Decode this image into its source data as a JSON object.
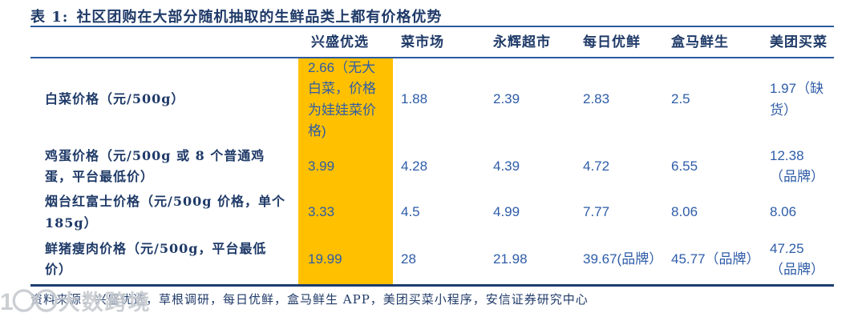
{
  "title": {
    "prefix": "表 1:",
    "text": "社区团购在大部分随机抽取的生鲜品类上都有价格优势"
  },
  "table": {
    "highlight_column": "兴盛优选",
    "highlight_color": "#FFC000",
    "columns": [
      "兴盛优选",
      "菜市场",
      "永辉超市",
      "每日优鲜",
      "盒马鲜生",
      "美团买菜"
    ],
    "rows": [
      {
        "label": "白菜价格（元/500g）",
        "values": [
          "2.66（无大白菜，价格为娃娃菜价格)",
          "1.88",
          "2.39",
          "2.83",
          "2.5",
          "1.97（缺货）"
        ]
      },
      {
        "label": "鸡蛋价格（元/500g 或 8 个普通鸡蛋，平台最低价）",
        "values": [
          "3.99",
          "4.28",
          "4.39",
          "4.72",
          "6.55",
          "12.38（品牌）"
        ]
      },
      {
        "label": "烟台红富士价格（元/500g 价格，单个 185g）",
        "values": [
          "3.33",
          "4.5",
          "4.99",
          "7.77",
          "8.06",
          "8.06"
        ]
      },
      {
        "label": "鲜猪瘦肉价格（元/500g，平台最低价）",
        "values": [
          "19.99",
          "28",
          "21.98",
          "39.67(品牌）",
          "45.77（品牌）",
          "47.25（品牌）"
        ]
      }
    ]
  },
  "source": "资料来源：兴盛优选，草根调研，每日优鲜，盒马鲜生 APP，美团买菜小程序，安信证券研究中心",
  "watermark": {
    "logo": "1〇〇",
    "text": "大数跨境"
  },
  "colors": {
    "highlight": "#FFC000",
    "navy": "#1F3A68",
    "value_blue": "#2E5CA8",
    "rule_blue": "#2B5AA0",
    "rule_dark": "#1C3D6E"
  },
  "chart_data": {
    "type": "table",
    "title": "表 1: 社区团购在大部分随机抽取的生鲜品类上都有价格优势",
    "columns": [
      "兴盛优选",
      "菜市场",
      "永辉超市",
      "每日优鲜",
      "盒马鲜生",
      "美团买菜"
    ],
    "rows": [
      {
        "label": "白菜价格（元/500g）",
        "values": [
          "2.66（无大白菜，价格为娃娃菜价格)",
          "1.88",
          "2.39",
          "2.83",
          "2.5",
          "1.97（缺货）"
        ]
      },
      {
        "label": "鸡蛋价格（元/500g 或 8 个普通鸡蛋，平台最低价）",
        "values": [
          "3.99",
          "4.28",
          "4.39",
          "4.72",
          "6.55",
          "12.38（品牌）"
        ]
      },
      {
        "label": "烟台红富士价格（元/500g 价格，单个 185g）",
        "values": [
          "3.33",
          "4.5",
          "4.99",
          "7.77",
          "8.06",
          "8.06"
        ]
      },
      {
        "label": "鲜猪瘦肉价格（元/500g，平台最低价）",
        "values": [
          "19.99",
          "28",
          "21.98",
          "39.67(品牌）",
          "45.77（品牌）",
          "47.25（品牌）"
        ]
      }
    ],
    "layout_hints": {
      "highlighted_column": "兴盛优选",
      "highlight_color": "#FFC000"
    }
  }
}
